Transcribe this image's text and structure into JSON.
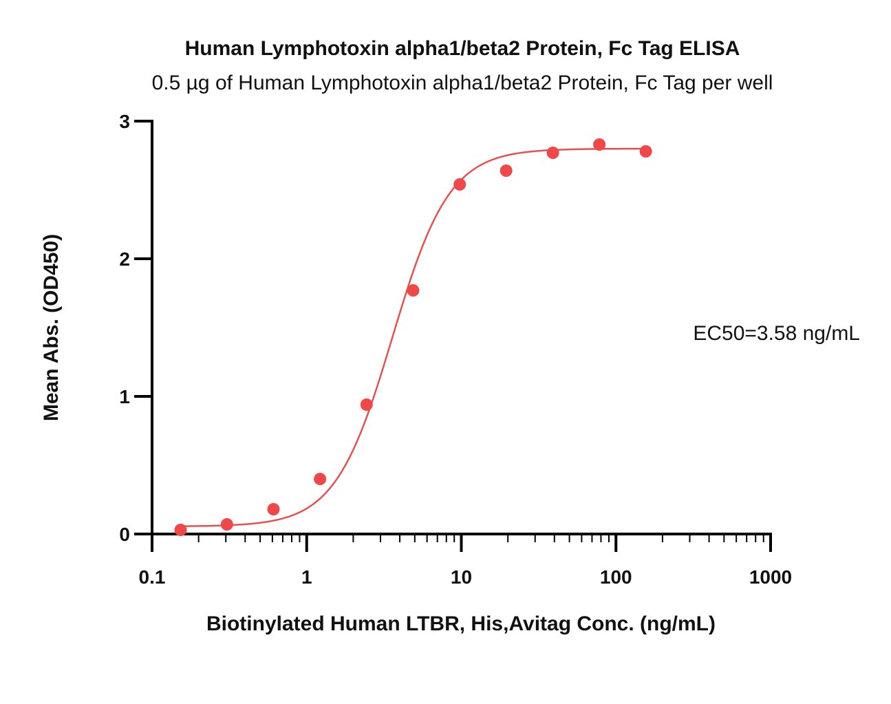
{
  "chart_data": {
    "type": "scatter",
    "title": "Human Lymphotoxin alpha1/beta2 Protein, Fc Tag ELISA",
    "subtitle": "0.5 µg of Human Lymphotoxin alpha1/beta2 Protein, Fc Tag per well",
    "xlabel": "Biotinylated Human LTBR, His,Avitag Conc. (ng/mL)",
    "ylabel": "Mean Abs. (OD450)",
    "x_scale": "log",
    "xlim": [
      0.1,
      1000
    ],
    "ylim": [
      0,
      3
    ],
    "x_ticks": [
      0.1,
      1,
      10,
      100,
      1000
    ],
    "x_tick_labels": [
      "0.1",
      "1",
      "10",
      "100",
      "1000"
    ],
    "y_ticks": [
      0,
      1,
      2,
      3
    ],
    "y_tick_labels": [
      "0",
      "1",
      "2",
      "3"
    ],
    "series": [
      {
        "x": [
          0.153,
          0.305,
          0.61,
          1.22,
          2.44,
          4.88,
          9.77,
          19.5,
          39.1,
          78.1,
          156
        ],
        "y": [
          0.03,
          0.07,
          0.18,
          0.4,
          0.94,
          1.77,
          2.54,
          2.64,
          2.77,
          2.83,
          2.78
        ],
        "color": "#F04848"
      }
    ],
    "fit": {
      "model": "4PL",
      "bottom": 0.055,
      "top": 2.8,
      "ec50": 3.58,
      "hill": 2.35,
      "color": "#E85050"
    },
    "annotation": "EC50=3.58 ng/mL",
    "grid": false,
    "legend": "none"
  }
}
